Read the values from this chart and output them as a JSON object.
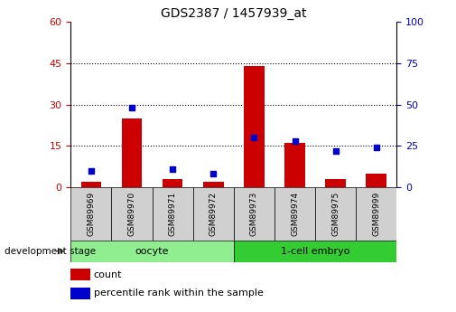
{
  "title": "GDS2387 / 1457939_at",
  "samples": [
    "GSM89969",
    "GSM89970",
    "GSM89971",
    "GSM89972",
    "GSM89973",
    "GSM89974",
    "GSM89975",
    "GSM89999"
  ],
  "counts": [
    2,
    25,
    3,
    2,
    44,
    16,
    3,
    5
  ],
  "percentile_ranks": [
    10,
    48,
    11,
    8,
    30,
    28,
    22,
    24
  ],
  "groups": [
    {
      "label": "oocyte",
      "indices": [
        0,
        3
      ],
      "color": "#90ee90"
    },
    {
      "label": "1-cell embryo",
      "indices": [
        4,
        7
      ],
      "color": "#33cc33"
    }
  ],
  "bar_color": "#cc0000",
  "dot_color": "#0000cc",
  "left_axis_color": "#cc0000",
  "right_axis_color": "#0000cc",
  "ylim_left": [
    0,
    60
  ],
  "ylim_right": [
    0,
    100
  ],
  "left_ticks": [
    0,
    15,
    30,
    45,
    60
  ],
  "right_ticks": [
    0,
    25,
    50,
    75,
    100
  ],
  "grid_values": [
    15,
    30,
    45
  ],
  "dev_stage_label": "development stage",
  "legend_count_label": "count",
  "legend_percentile_label": "percentile rank within the sample",
  "bg_color": "#ffffff",
  "plot_bg_color": "#ffffff",
  "tick_bg_color": "#d0d0d0",
  "bar_width": 0.5
}
